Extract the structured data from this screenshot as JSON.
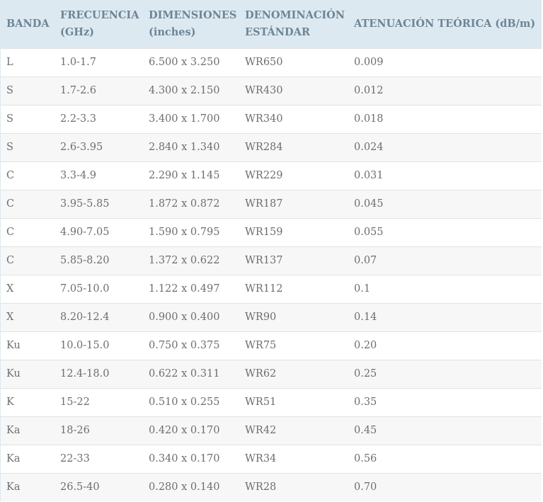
{
  "table": {
    "headers": [
      "BANDA",
      "FRECUENCIA (GHz)",
      "DIMENSIONES (inches)",
      "DENOMINACIÓN ESTÁNDAR",
      "ATENUACIÓN TEÓRICA (dB/m)"
    ],
    "rows": [
      [
        "L",
        "1.0-1.7",
        "6.500 x 3.250",
        "WR650",
        "0.009"
      ],
      [
        "S",
        "1.7-2.6",
        "4.300 x 2.150",
        "WR430",
        "0.012"
      ],
      [
        "S",
        "2.2-3.3",
        "3.400 x 1.700",
        "WR340",
        "0.018"
      ],
      [
        "S",
        "2.6-3.95",
        "2.840 x 1.340",
        "WR284",
        "0.024"
      ],
      [
        "C",
        "3.3-4.9",
        "2.290 x 1.145",
        "WR229",
        "0.031"
      ],
      [
        "C",
        "3.95-5.85",
        "1.872 x 0.872",
        "WR187",
        "0.045"
      ],
      [
        "C",
        "4.90-7.05",
        "1.590 x 0.795",
        "WR159",
        "0.055"
      ],
      [
        "C",
        "5.85-8.20",
        "1.372 x 0.622",
        "WR137",
        "0.07"
      ],
      [
        "X",
        "7.05-10.0",
        "1.122 x 0.497",
        "WR112",
        "0.1"
      ],
      [
        "X",
        "8.20-12.4",
        "0.900 x 0.400",
        "WR90",
        "0.14"
      ],
      [
        "Ku",
        "10.0-15.0",
        "0.750 x 0.375",
        "WR75",
        "0.20"
      ],
      [
        "Ku",
        "12.4-18.0",
        "0.622 x 0.311",
        "WR62",
        "0.25"
      ],
      [
        "K",
        "15-22",
        "0.510 x 0.255",
        "WR51",
        "0.35"
      ],
      [
        "Ka",
        "18-26",
        "0.420 x 0.170",
        "WR42",
        "0.45"
      ],
      [
        "Ka",
        "22-33",
        "0.340 x 0.170",
        "WR34",
        "0.56"
      ],
      [
        "Ka",
        "26.5-40",
        "0.280 x 0.140",
        "WR28",
        "0.70"
      ]
    ]
  },
  "colors": {
    "header_bg": "#dde9f1",
    "header_text": "#6d8595",
    "cell_text": "#6e6e6e",
    "row_alt_bg": "#f7f7f7",
    "row_border": "#e2e2e2"
  }
}
